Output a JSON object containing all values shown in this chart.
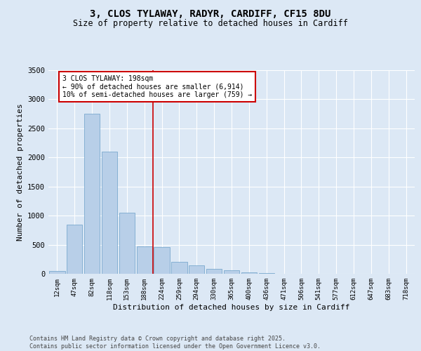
{
  "title_line1": "3, CLOS TYLAWAY, RADYR, CARDIFF, CF15 8DU",
  "title_line2": "Size of property relative to detached houses in Cardiff",
  "xlabel": "Distribution of detached houses by size in Cardiff",
  "ylabel": "Number of detached properties",
  "categories": [
    "12sqm",
    "47sqm",
    "82sqm",
    "118sqm",
    "153sqm",
    "188sqm",
    "224sqm",
    "259sqm",
    "294sqm",
    "330sqm",
    "365sqm",
    "400sqm",
    "436sqm",
    "471sqm",
    "506sqm",
    "541sqm",
    "577sqm",
    "612sqm",
    "647sqm",
    "683sqm",
    "718sqm"
  ],
  "values": [
    50,
    850,
    2750,
    2100,
    1050,
    470,
    460,
    200,
    140,
    80,
    55,
    30,
    15,
    5,
    2,
    1,
    0,
    0,
    0,
    0,
    0
  ],
  "bar_color": "#b8cfe8",
  "bar_edge_color": "#6b9fc8",
  "background_color": "#dce8f5",
  "grid_color": "#ffffff",
  "red_line_index": 5.5,
  "annotation_text": "3 CLOS TYLAWAY: 198sqm\n← 90% of detached houses are smaller (6,914)\n10% of semi-detached houses are larger (759) →",
  "annotation_box_color": "#ffffff",
  "annotation_box_edge": "#cc0000",
  "red_line_color": "#cc0000",
  "ylim": [
    0,
    3500
  ],
  "yticks": [
    0,
    500,
    1000,
    1500,
    2000,
    2500,
    3000,
    3500
  ],
  "footer_line1": "Contains HM Land Registry data © Crown copyright and database right 2025.",
  "footer_line2": "Contains public sector information licensed under the Open Government Licence v3.0."
}
